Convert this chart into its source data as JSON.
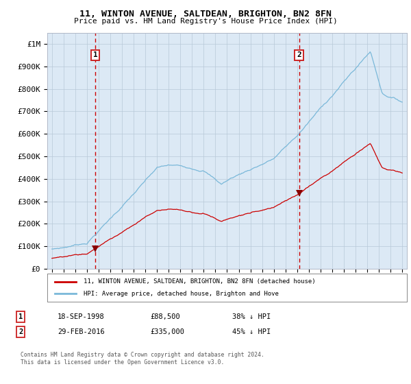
{
  "title": "11, WINTON AVENUE, SALTDEAN, BRIGHTON, BN2 8FN",
  "subtitle": "Price paid vs. HM Land Registry's House Price Index (HPI)",
  "legend_label_red": "11, WINTON AVENUE, SALTDEAN, BRIGHTON, BN2 8FN (detached house)",
  "legend_label_blue": "HPI: Average price, detached house, Brighton and Hove",
  "sale_1_date": "18-SEP-1998",
  "sale_1_price": "£88,500",
  "sale_1_note": "38% ↓ HPI",
  "sale_2_date": "29-FEB-2016",
  "sale_2_price": "£335,000",
  "sale_2_note": "45% ↓ HPI",
  "footnote_line1": "Contains HM Land Registry data © Crown copyright and database right 2024.",
  "footnote_line2": "This data is licensed under the Open Government Licence v3.0.",
  "red_line_color": "#cc0000",
  "blue_line_color": "#7ab8d9",
  "bg_color": "#dce9f5",
  "vline_color": "#cc0000",
  "marker_color": "#880000",
  "box_edge_color": "#cc2222",
  "ylim_min": 0,
  "ylim_max": 1050000,
  "yticks": [
    0,
    100000,
    200000,
    300000,
    400000,
    500000,
    600000,
    700000,
    800000,
    900000,
    1000000
  ],
  "ytick_labels": [
    "£0",
    "£100K",
    "£200K",
    "£300K",
    "£400K",
    "£500K",
    "£600K",
    "£700K",
    "£800K",
    "£900K",
    "£1M"
  ],
  "sale_1_x": 1998.72,
  "sale_1_y": 88500,
  "sale_2_x": 2016.16,
  "sale_2_y": 335000,
  "xlim_min": 1994.6,
  "xlim_max": 2025.4
}
